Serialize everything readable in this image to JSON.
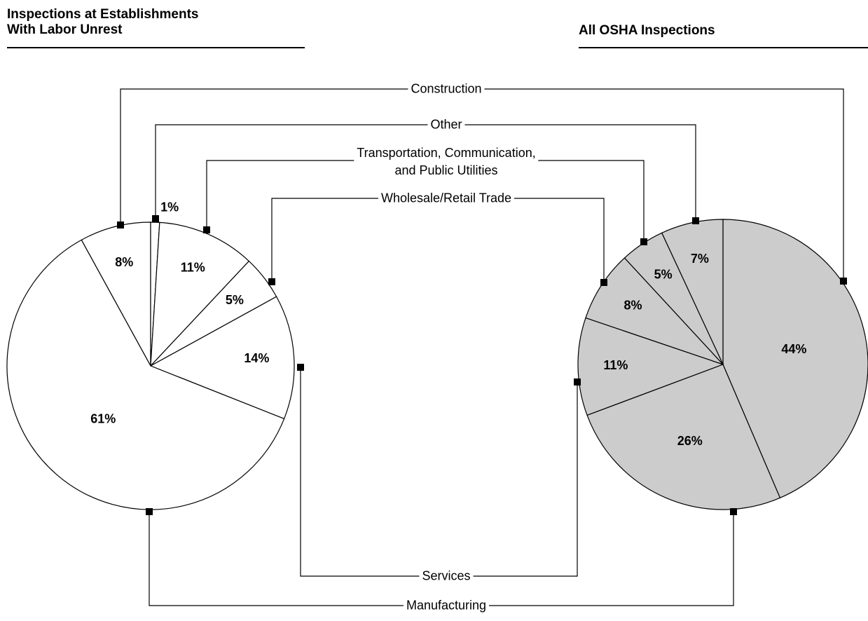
{
  "chart_data": {
    "type": "pie",
    "categories": [
      "Construction",
      "Other",
      "Transportation, Communication,\nand Public Utilities",
      "Wholesale/Retail Trade",
      "Services",
      "Manufacturing"
    ],
    "series": [
      {
        "name": "Inspections at Establishments\nWith Labor Unrest",
        "color": "#ffffff",
        "values": [
          8,
          1,
          11,
          5,
          14,
          61
        ],
        "value_labels": [
          "8%",
          "1%",
          "11%",
          "5%",
          "14%",
          "61%"
        ]
      },
      {
        "name": "All OSHA Inspections",
        "color": "#cccccc",
        "values": [
          44,
          7,
          5,
          8,
          11,
          26
        ],
        "value_labels": [
          "44%",
          "7%",
          "5%",
          "8%",
          "11%",
          "26%"
        ]
      }
    ]
  }
}
